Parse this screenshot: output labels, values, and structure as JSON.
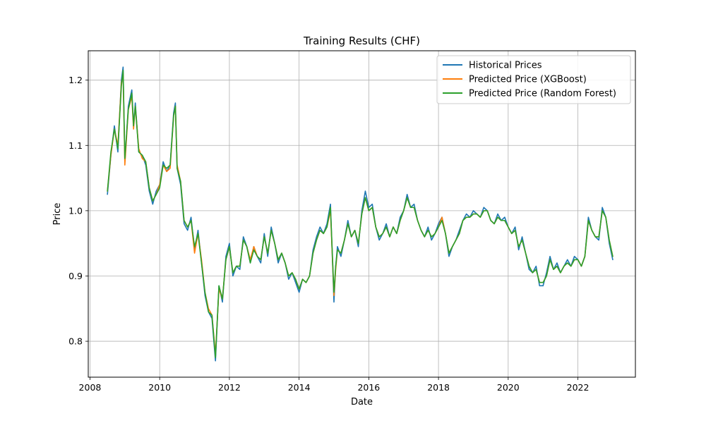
{
  "chart_data": {
    "type": "line",
    "title": "Training Results (CHF)",
    "xlabel": "Date",
    "ylabel": "Price",
    "xlim": [
      2007.95,
      2023.65
    ],
    "ylim": [
      0.745,
      1.245
    ],
    "x_ticks": [
      2008,
      2010,
      2012,
      2014,
      2016,
      2018,
      2020,
      2022
    ],
    "y_ticks": [
      0.8,
      0.9,
      1.0,
      1.1,
      1.2
    ],
    "y_tick_labels": [
      "0.8",
      "0.9",
      "1.0",
      "1.1",
      "1.2"
    ],
    "grid": true,
    "legend_position": "top-right",
    "x": [
      2008.5,
      2008.6,
      2008.7,
      2008.8,
      2008.9,
      2008.95,
      2009.0,
      2009.1,
      2009.2,
      2009.25,
      2009.3,
      2009.4,
      2009.5,
      2009.6,
      2009.7,
      2009.8,
      2009.9,
      2010.0,
      2010.1,
      2010.2,
      2010.3,
      2010.4,
      2010.45,
      2010.5,
      2010.6,
      2010.7,
      2010.8,
      2010.9,
      2011.0,
      2011.1,
      2011.2,
      2011.3,
      2011.4,
      2011.5,
      2011.6,
      2011.7,
      2011.8,
      2011.9,
      2012.0,
      2012.1,
      2012.2,
      2012.3,
      2012.4,
      2012.5,
      2012.6,
      2012.7,
      2012.8,
      2012.9,
      2013.0,
      2013.1,
      2013.2,
      2013.3,
      2013.4,
      2013.5,
      2013.6,
      2013.7,
      2013.8,
      2013.9,
      2014.0,
      2014.1,
      2014.2,
      2014.3,
      2014.4,
      2014.5,
      2014.6,
      2014.7,
      2014.8,
      2014.9,
      2015.0,
      2015.05,
      2015.1,
      2015.2,
      2015.3,
      2015.4,
      2015.5,
      2015.6,
      2015.7,
      2015.8,
      2015.9,
      2016.0,
      2016.1,
      2016.2,
      2016.3,
      2016.4,
      2016.5,
      2016.6,
      2016.7,
      2016.8,
      2016.9,
      2017.0,
      2017.1,
      2017.2,
      2017.3,
      2017.4,
      2017.5,
      2017.6,
      2017.7,
      2017.8,
      2017.9,
      2018.0,
      2018.1,
      2018.2,
      2018.3,
      2018.4,
      2018.5,
      2018.6,
      2018.7,
      2018.8,
      2018.9,
      2019.0,
      2019.1,
      2019.2,
      2019.3,
      2019.4,
      2019.5,
      2019.6,
      2019.7,
      2019.8,
      2019.9,
      2020.0,
      2020.1,
      2020.2,
      2020.3,
      2020.4,
      2020.5,
      2020.6,
      2020.7,
      2020.8,
      2020.9,
      2021.0,
      2021.1,
      2021.2,
      2021.3,
      2021.4,
      2021.5,
      2021.6,
      2021.7,
      2021.8,
      2021.9,
      2022.0,
      2022.1,
      2022.2,
      2022.3,
      2022.4,
      2022.5,
      2022.6,
      2022.7,
      2022.8,
      2022.9,
      2023.0
    ],
    "series": [
      {
        "name": "Historical Prices",
        "color": "#1f77b4",
        "values": [
          1.025,
          1.085,
          1.13,
          1.09,
          1.2,
          1.22,
          1.075,
          1.16,
          1.185,
          1.13,
          1.165,
          1.09,
          1.085,
          1.07,
          1.03,
          1.01,
          1.03,
          1.04,
          1.075,
          1.06,
          1.07,
          1.15,
          1.165,
          1.065,
          1.04,
          0.98,
          0.97,
          0.99,
          0.94,
          0.97,
          0.92,
          0.87,
          0.845,
          0.835,
          0.77,
          0.885,
          0.86,
          0.93,
          0.95,
          0.9,
          0.915,
          0.91,
          0.96,
          0.945,
          0.92,
          0.945,
          0.93,
          0.92,
          0.965,
          0.93,
          0.975,
          0.95,
          0.92,
          0.935,
          0.92,
          0.895,
          0.905,
          0.89,
          0.875,
          0.895,
          0.89,
          0.9,
          0.94,
          0.96,
          0.975,
          0.965,
          0.98,
          1.01,
          0.86,
          0.915,
          0.945,
          0.93,
          0.955,
          0.985,
          0.96,
          0.97,
          0.945,
          1.0,
          1.03,
          1.005,
          1.01,
          0.975,
          0.955,
          0.965,
          0.98,
          0.96,
          0.975,
          0.965,
          0.99,
          1.0,
          1.025,
          1.005,
          1.01,
          0.985,
          0.97,
          0.96,
          0.975,
          0.955,
          0.965,
          0.98,
          0.99,
          0.965,
          0.93,
          0.945,
          0.955,
          0.97,
          0.985,
          0.995,
          0.99,
          1.0,
          0.995,
          0.99,
          1.005,
          1.0,
          0.985,
          0.98,
          0.995,
          0.985,
          0.99,
          0.975,
          0.965,
          0.975,
          0.94,
          0.96,
          0.935,
          0.91,
          0.905,
          0.915,
          0.885,
          0.885,
          0.905,
          0.93,
          0.91,
          0.92,
          0.905,
          0.915,
          0.925,
          0.915,
          0.93,
          0.925,
          0.915,
          0.93,
          0.99,
          0.97,
          0.96,
          0.955,
          1.005,
          0.99,
          0.95,
          0.925
        ]
      },
      {
        "name": "Predicted Price (XGBoost)",
        "color": "#ff7f0e",
        "values": [
          1.03,
          1.085,
          1.125,
          1.1,
          1.195,
          1.21,
          1.07,
          1.155,
          1.175,
          1.125,
          1.16,
          1.095,
          1.08,
          1.075,
          1.035,
          1.015,
          1.025,
          1.04,
          1.07,
          1.06,
          1.065,
          1.145,
          1.16,
          1.07,
          1.045,
          0.985,
          0.975,
          0.985,
          0.935,
          0.965,
          0.925,
          0.875,
          0.85,
          0.84,
          0.78,
          0.88,
          0.865,
          0.925,
          0.945,
          0.905,
          0.915,
          0.915,
          0.955,
          0.945,
          0.925,
          0.945,
          0.93,
          0.925,
          0.96,
          0.935,
          0.97,
          0.95,
          0.925,
          0.935,
          0.92,
          0.9,
          0.905,
          0.895,
          0.88,
          0.895,
          0.89,
          0.9,
          0.935,
          0.955,
          0.97,
          0.965,
          0.975,
          1.0,
          0.87,
          0.91,
          0.94,
          0.935,
          0.955,
          0.98,
          0.96,
          0.97,
          0.95,
          0.995,
          1.02,
          1.0,
          1.005,
          0.975,
          0.96,
          0.965,
          0.975,
          0.96,
          0.975,
          0.965,
          0.985,
          1.0,
          1.02,
          1.005,
          1.005,
          0.985,
          0.97,
          0.96,
          0.97,
          0.96,
          0.965,
          0.975,
          0.99,
          0.965,
          0.935,
          0.945,
          0.955,
          0.965,
          0.985,
          0.99,
          0.99,
          0.995,
          0.995,
          0.99,
          1.0,
          1.0,
          0.985,
          0.98,
          0.99,
          0.985,
          0.985,
          0.975,
          0.965,
          0.97,
          0.945,
          0.955,
          0.935,
          0.915,
          0.905,
          0.91,
          0.89,
          0.89,
          0.9,
          0.925,
          0.91,
          0.915,
          0.905,
          0.915,
          0.92,
          0.915,
          0.925,
          0.925,
          0.915,
          0.93,
          0.985,
          0.97,
          0.96,
          0.96,
          1.0,
          0.99,
          0.955,
          0.93
        ]
      },
      {
        "name": "Predicted Price (Random Forest)",
        "color": "#2ca02c",
        "values": [
          1.03,
          1.09,
          1.125,
          1.095,
          1.19,
          1.215,
          1.08,
          1.155,
          1.18,
          1.13,
          1.16,
          1.09,
          1.085,
          1.075,
          1.035,
          1.015,
          1.025,
          1.035,
          1.07,
          1.065,
          1.07,
          1.145,
          1.16,
          1.065,
          1.045,
          0.985,
          0.975,
          0.985,
          0.945,
          0.965,
          0.92,
          0.875,
          0.845,
          0.84,
          0.775,
          0.885,
          0.865,
          0.925,
          0.945,
          0.905,
          0.915,
          0.915,
          0.955,
          0.945,
          0.92,
          0.94,
          0.93,
          0.925,
          0.96,
          0.935,
          0.97,
          0.95,
          0.925,
          0.935,
          0.92,
          0.9,
          0.905,
          0.895,
          0.88,
          0.895,
          0.89,
          0.9,
          0.935,
          0.955,
          0.97,
          0.965,
          0.975,
          1.005,
          0.875,
          0.915,
          0.94,
          0.935,
          0.955,
          0.98,
          0.96,
          0.97,
          0.95,
          0.995,
          1.02,
          1.0,
          1.005,
          0.975,
          0.96,
          0.965,
          0.975,
          0.96,
          0.975,
          0.965,
          0.985,
          1.0,
          1.02,
          1.005,
          1.005,
          0.985,
          0.97,
          0.96,
          0.97,
          0.96,
          0.965,
          0.975,
          0.985,
          0.965,
          0.935,
          0.945,
          0.955,
          0.965,
          0.985,
          0.99,
          0.99,
          0.995,
          0.995,
          0.99,
          1.0,
          1.0,
          0.985,
          0.98,
          0.99,
          0.985,
          0.985,
          0.975,
          0.965,
          0.97,
          0.945,
          0.955,
          0.935,
          0.915,
          0.905,
          0.91,
          0.89,
          0.89,
          0.9,
          0.925,
          0.91,
          0.915,
          0.905,
          0.915,
          0.92,
          0.915,
          0.925,
          0.925,
          0.915,
          0.93,
          0.985,
          0.97,
          0.96,
          0.96,
          1.0,
          0.99,
          0.955,
          0.93
        ]
      }
    ]
  }
}
